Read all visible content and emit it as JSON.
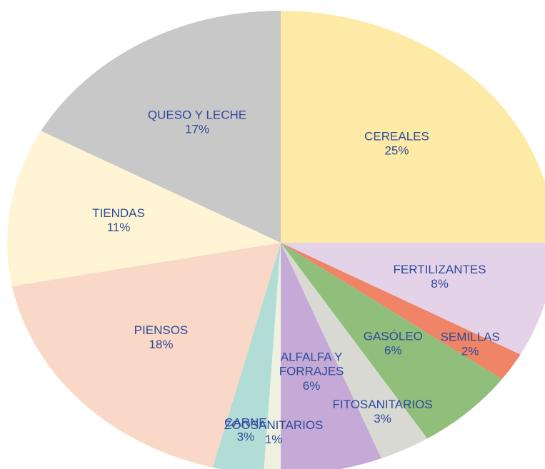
{
  "chart_data": {
    "type": "pie",
    "categories": [
      "CEREALES",
      "FERTILIZANTES",
      "SEMILLAS",
      "GASÓLEO",
      "FITOSANITARIOS",
      "ALFALFA Y FORRAJES",
      "ZOOSANITARIOS",
      "CARNE",
      "PIENSOS",
      "TIENDAS",
      "QUESO Y LECHE"
    ],
    "values": [
      25,
      8,
      2,
      6,
      3,
      6,
      1,
      3,
      18,
      11,
      17
    ],
    "value_labels": [
      "25%",
      "8%",
      "2%",
      "6%",
      "3%",
      "6%",
      "1%",
      "3%",
      "18%",
      "11%",
      "17%"
    ],
    "colors": [
      "#fdeaa7",
      "#e4d3e8",
      "#ef8466",
      "#8fbf7a",
      "#d9d9d3",
      "#c5aad7",
      "#eef0e0",
      "#b2dcd6",
      "#fad8c7",
      "#fff4d4",
      "#c8c8c8"
    ]
  }
}
